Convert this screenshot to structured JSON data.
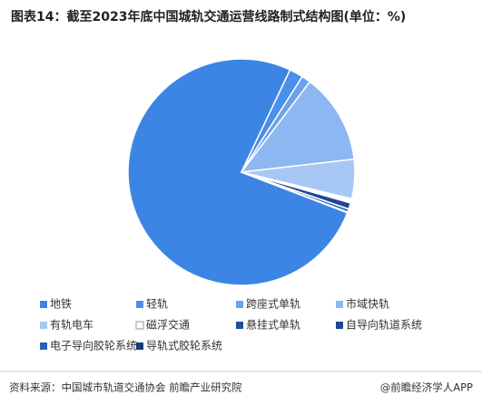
{
  "chart_data": {
    "type": "pie",
    "title": "图表14：截至2023年底中国城轨交通运营线路制式结构图(单位：%)",
    "source": "资料来源：中国城市轨道交通协会 前瞻产业研究院",
    "brand": "@前瞻经济学人APP",
    "categories": [
      "地铁",
      "轻轨",
      "跨座式单轨",
      "市域快轨",
      "有轨电车",
      "磁浮交通",
      "悬挂式单轨",
      "自导向轨道系统",
      "电子导向胶轮系统",
      "导轨式胶轮系统"
    ],
    "values": [
      76.96,
      1.98,
      1.3,
      13.01,
      5.66,
      0.52,
      0.1,
      0.9,
      0.46,
      0.09
    ],
    "colors": [
      "#3d85e4",
      "#4a8fe8",
      "#6aa2ec",
      "#8db7f0",
      "#a7c8f4",
      "#ffffff",
      "#1f4f9e",
      "#1c4896",
      "#2a62b8",
      "#173c7c"
    ],
    "legend": "bottom"
  }
}
